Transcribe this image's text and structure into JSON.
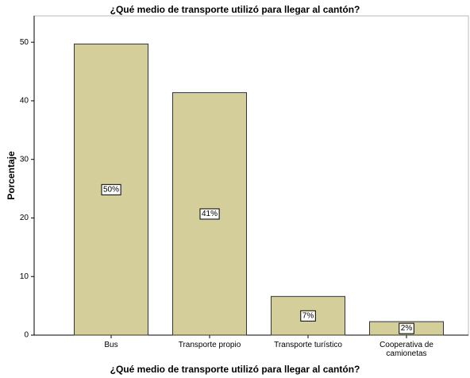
{
  "chart_data": {
    "type": "bar",
    "title": "¿Qué medio de transporte utilizó para llegar al cantón?",
    "x_label": "¿Qué medio de transporte utilizó para llegar al cantón?",
    "y_label": "Porcentaje",
    "categories": [
      "Bus",
      "Transporte propio",
      "Transporte turístico",
      "Cooperativa de camionetas"
    ],
    "values": [
      49.7,
      41.4,
      6.6,
      2.3
    ],
    "value_labels": [
      "50%",
      "41%",
      "7%",
      "2%"
    ],
    "color": "#d4cf9a",
    "ylim": [
      0,
      54.5
    ],
    "yticks": [
      0,
      10,
      20,
      30,
      40,
      50
    ]
  }
}
